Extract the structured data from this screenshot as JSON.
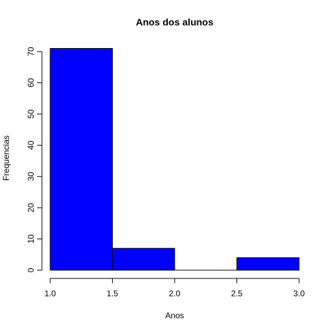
{
  "chart_data": {
    "type": "bar",
    "title": "Anos dos alunos",
    "xlabel": "Anos",
    "ylabel": "Frequencias",
    "bins": [
      {
        "start": 1.0,
        "end": 1.5,
        "count": 71
      },
      {
        "start": 1.5,
        "end": 2.0,
        "count": 7
      },
      {
        "start": 2.0,
        "end": 2.5,
        "count": 0
      },
      {
        "start": 2.5,
        "end": 3.0,
        "count": 4
      }
    ],
    "xlim": [
      1.0,
      3.0
    ],
    "ylim": [
      0,
      70
    ],
    "x_ticks": [
      "1.0",
      "1.5",
      "2.0",
      "2.5",
      "3.0"
    ],
    "y_ticks": [
      "0",
      "10",
      "20",
      "30",
      "40",
      "50",
      "60",
      "70"
    ],
    "bar_color": "#0000ff",
    "bar_border_color": "#000000",
    "grid": false,
    "legend": "none"
  }
}
